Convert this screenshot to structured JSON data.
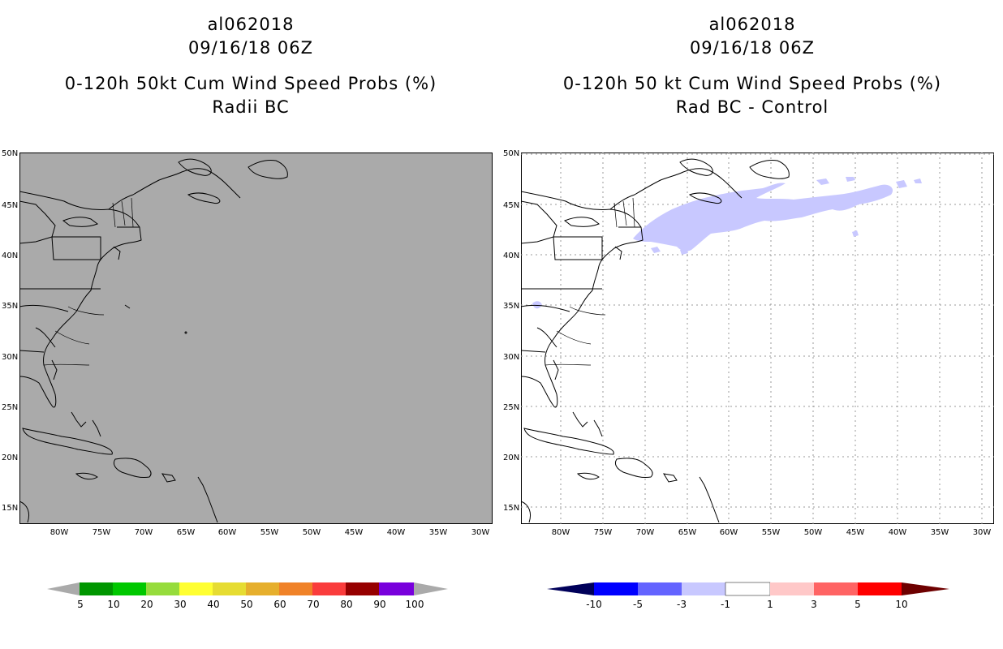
{
  "panels": [
    {
      "storm_id": "al062018",
      "datetime": "09/16/18 06Z",
      "product": "0-120h 50kt Cum Wind Speed Probs (%)",
      "subtitle": "Radii BC",
      "background": "#aaaaaa",
      "colorbar": {
        "labels": [
          "5",
          "10",
          "20",
          "30",
          "40",
          "50",
          "60",
          "70",
          "80",
          "90",
          "100"
        ],
        "colors": [
          "#009600",
          "#00c800",
          "#96dc3c",
          "#ffff32",
          "#e6dc32",
          "#e6af2d",
          "#f08228",
          "#fa3c3c",
          "#960000",
          "#7800dc"
        ]
      }
    },
    {
      "storm_id": "al062018",
      "datetime": "09/16/18 06Z",
      "product": "0-120h 50 kt Cum Wind Speed Probs (%)",
      "subtitle": "Rad BC - Control",
      "background": "#ffffff",
      "colorbar": {
        "labels": [
          "-10",
          "-5",
          "-3",
          "-1",
          "1",
          "3",
          "5",
          "10"
        ],
        "colors": [
          "#000096",
          "#0000ff",
          "#6464ff",
          "#c8c8ff",
          "#ffffff",
          "#ffc8c8",
          "#ff6464",
          "#ff0000"
        ],
        "end_low": "#00005a",
        "end_high": "#6e0000"
      }
    }
  ],
  "axes": {
    "lat_labels": [
      "50N",
      "45N",
      "40N",
      "35N",
      "30N",
      "25N",
      "20N",
      "15N"
    ],
    "lon_labels": [
      "80W",
      "75W",
      "70W",
      "65W",
      "60W",
      "55W",
      "50W",
      "45W",
      "40W",
      "35W",
      "30W"
    ]
  }
}
